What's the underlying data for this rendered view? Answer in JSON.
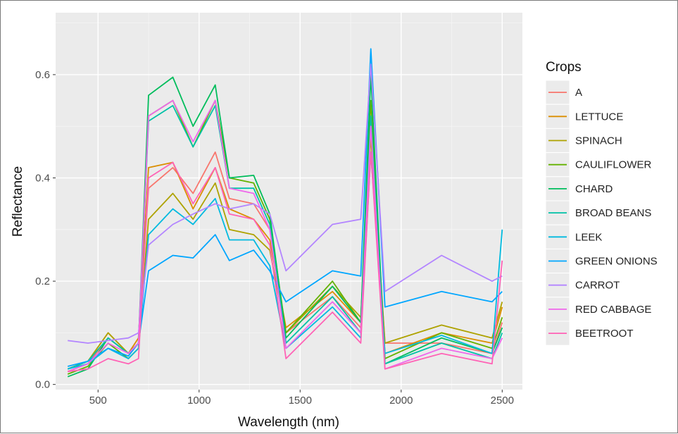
{
  "chart_data": {
    "type": "line",
    "title": "",
    "xlabel": "Wavelength (nm)",
    "ylabel": "Reflectance",
    "xlim": [
      290,
      2600
    ],
    "ylim": [
      -0.01,
      0.72
    ],
    "x_ticks": [
      500,
      1000,
      1500,
      2000,
      2500
    ],
    "x_tick_labels": [
      "500",
      "1000",
      "1500",
      "2000",
      "2500"
    ],
    "y_ticks": [
      0.0,
      0.2,
      0.4,
      0.6
    ],
    "y_tick_labels": [
      "0.0",
      "0.2",
      "0.4",
      "0.6"
    ],
    "grid": true,
    "background": "#ebebeb",
    "legend": {
      "title": "Crops",
      "placement": "right"
    },
    "x": [
      350,
      450,
      550,
      650,
      700,
      750,
      870,
      970,
      1080,
      1150,
      1270,
      1350,
      1430,
      1660,
      1800,
      1850,
      1920,
      2200,
      2450,
      2500
    ],
    "series": [
      {
        "name": "A",
        "color": "#f8766d",
        "values": [
          0.025,
          0.04,
          0.09,
          0.06,
          0.09,
          0.38,
          0.42,
          0.37,
          0.45,
          0.36,
          0.35,
          0.3,
          0.1,
          0.17,
          0.11,
          0.5,
          0.08,
          0.08,
          0.06,
          0.12
        ]
      },
      {
        "name": "LETTUCE",
        "color": "#db8e00",
        "values": [
          0.03,
          0.045,
          0.1,
          0.06,
          0.09,
          0.42,
          0.43,
          0.34,
          0.42,
          0.34,
          0.32,
          0.28,
          0.11,
          0.18,
          0.12,
          0.45,
          0.06,
          0.1,
          0.08,
          0.15
        ]
      },
      {
        "name": "SPINACH",
        "color": "#aea200",
        "values": [
          0.03,
          0.045,
          0.1,
          0.06,
          0.08,
          0.32,
          0.37,
          0.32,
          0.39,
          0.3,
          0.29,
          0.26,
          0.1,
          0.19,
          0.13,
          0.48,
          0.08,
          0.115,
          0.09,
          0.16
        ]
      },
      {
        "name": "CAULIFLOWER",
        "color": "#64b200",
        "values": [
          0.02,
          0.035,
          0.08,
          0.05,
          0.07,
          0.52,
          0.55,
          0.46,
          0.55,
          0.4,
          0.39,
          0.32,
          0.1,
          0.2,
          0.12,
          0.55,
          0.05,
          0.1,
          0.07,
          0.13
        ]
      },
      {
        "name": "CHARD",
        "color": "#00bd5c",
        "values": [
          0.015,
          0.03,
          0.09,
          0.06,
          0.08,
          0.56,
          0.595,
          0.5,
          0.58,
          0.4,
          0.405,
          0.33,
          0.09,
          0.19,
          0.12,
          0.6,
          0.04,
          0.09,
          0.06,
          0.11
        ]
      },
      {
        "name": "BROAD BEANS",
        "color": "#00c1a7",
        "values": [
          0.03,
          0.045,
          0.09,
          0.06,
          0.08,
          0.51,
          0.54,
          0.46,
          0.54,
          0.38,
          0.38,
          0.31,
          0.08,
          0.17,
          0.1,
          0.52,
          0.04,
          0.08,
          0.05,
          0.1
        ]
      },
      {
        "name": "LEEK",
        "color": "#00badf",
        "values": [
          0.03,
          0.04,
          0.07,
          0.05,
          0.07,
          0.29,
          0.34,
          0.31,
          0.36,
          0.28,
          0.28,
          0.23,
          0.07,
          0.15,
          0.09,
          0.45,
          0.06,
          0.095,
          0.06,
          0.3
        ]
      },
      {
        "name": "GREEN ONIONS",
        "color": "#00a6ff",
        "values": [
          0.035,
          0.045,
          0.07,
          0.055,
          0.08,
          0.22,
          0.25,
          0.245,
          0.29,
          0.24,
          0.26,
          0.22,
          0.16,
          0.22,
          0.21,
          0.65,
          0.15,
          0.18,
          0.16,
          0.18
        ]
      },
      {
        "name": "CARROT",
        "color": "#b385ff",
        "values": [
          0.085,
          0.08,
          0.085,
          0.09,
          0.1,
          0.27,
          0.31,
          0.33,
          0.35,
          0.34,
          0.35,
          0.33,
          0.22,
          0.31,
          0.32,
          0.62,
          0.18,
          0.25,
          0.2,
          0.21
        ]
      },
      {
        "name": "RED CABBAGE",
        "color": "#ef67eb",
        "values": [
          0.025,
          0.04,
          0.08,
          0.06,
          0.08,
          0.52,
          0.55,
          0.47,
          0.55,
          0.38,
          0.37,
          0.3,
          0.07,
          0.16,
          0.1,
          0.5,
          0.03,
          0.07,
          0.05,
          0.09
        ]
      },
      {
        "name": "BEETROOT",
        "color": "#ff63b6",
        "values": [
          0.025,
          0.03,
          0.05,
          0.04,
          0.05,
          0.4,
          0.43,
          0.35,
          0.42,
          0.33,
          0.32,
          0.27,
          0.05,
          0.14,
          0.08,
          0.45,
          0.03,
          0.06,
          0.04,
          0.24
        ]
      }
    ]
  }
}
